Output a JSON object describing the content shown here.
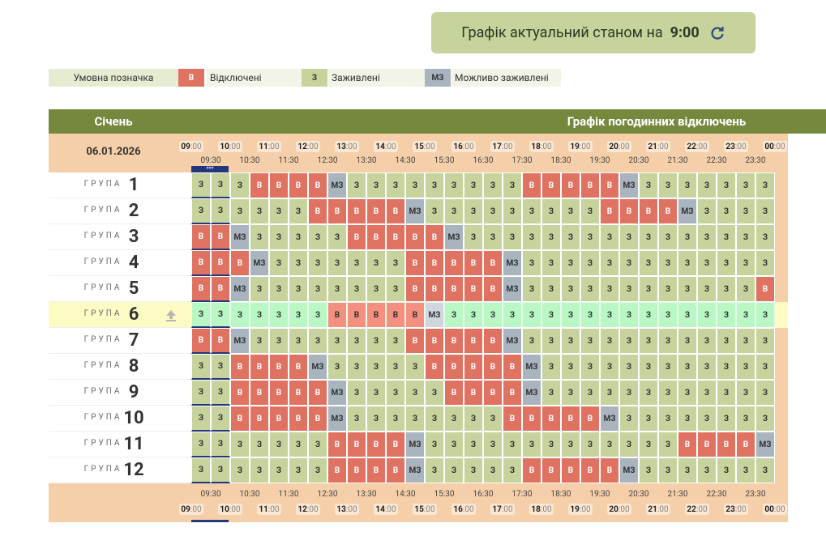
{
  "status": {
    "text": "Графік актуальний станом на",
    "time": "9:00"
  },
  "legend": {
    "title": "Умовна позначка",
    "items": [
      {
        "code": "В",
        "label": "Відключені",
        "color": "#e07262",
        "highlight_color": "#f4907f"
      },
      {
        "code": "З",
        "label": "Заживлені",
        "color": "#c6d39c",
        "highlight_color": "#b9f7c4"
      },
      {
        "code": "МЗ",
        "label": "Можливо заживлені",
        "color": "#a9b4bf",
        "highlight_color": "#d0d6de"
      }
    ]
  },
  "header": {
    "month": "Січень",
    "title": "Графік погодинних відключень",
    "date": "06.01.2026"
  },
  "current_marker": "***",
  "hours": [
    {
      "h": "09",
      "m": ":00"
    },
    {
      "h": "10",
      "m": ":00"
    },
    {
      "h": "11",
      "m": ":00"
    },
    {
      "h": "12",
      "m": ":00"
    },
    {
      "h": "13",
      "m": ":00"
    },
    {
      "h": "14",
      "m": ":00"
    },
    {
      "h": "15",
      "m": ":00"
    },
    {
      "h": "16",
      "m": ":00"
    },
    {
      "h": "17",
      "m": ":00"
    },
    {
      "h": "18",
      "m": ":00"
    },
    {
      "h": "19",
      "m": ":00"
    },
    {
      "h": "20",
      "m": ":00"
    },
    {
      "h": "21",
      "m": ":00"
    },
    {
      "h": "22",
      "m": ":00"
    },
    {
      "h": "23",
      "m": ":00"
    },
    {
      "h": "00",
      "m": ":00"
    }
  ],
  "half_hours": [
    "09:30",
    "10:30",
    "11:30",
    "12:30",
    "13:30",
    "14:30",
    "15:30",
    "16:30",
    "17:30",
    "18:30",
    "19:30",
    "20:30",
    "21:30",
    "22:30",
    "23:30"
  ],
  "group_word": "ГРУПА",
  "groups": [
    {
      "number": 1,
      "cells": [
        "З",
        "З",
        "З",
        "В",
        "В",
        "В",
        "В",
        "МЗ",
        "З",
        "З",
        "З",
        "З",
        "З",
        "З",
        "З",
        "З",
        "З",
        "В",
        "В",
        "В",
        "В",
        "В",
        "МЗ",
        "З",
        "З",
        "З",
        "З",
        "З",
        "З",
        "З"
      ]
    },
    {
      "number": 2,
      "cells": [
        "З",
        "З",
        "З",
        "З",
        "З",
        "З",
        "В",
        "В",
        "В",
        "В",
        "В",
        "МЗ",
        "З",
        "З",
        "З",
        "З",
        "З",
        "З",
        "З",
        "З",
        "З",
        "В",
        "В",
        "В",
        "В",
        "МЗ",
        "З",
        "З",
        "З",
        "З"
      ]
    },
    {
      "number": 3,
      "cells": [
        "В",
        "В",
        "МЗ",
        "З",
        "З",
        "З",
        "З",
        "З",
        "В",
        "В",
        "В",
        "В",
        "В",
        "МЗ",
        "З",
        "З",
        "З",
        "З",
        "З",
        "З",
        "З",
        "З",
        "З",
        "З",
        "З",
        "З",
        "З",
        "З",
        "З",
        "З"
      ]
    },
    {
      "number": 4,
      "cells": [
        "В",
        "В",
        "В",
        "МЗ",
        "З",
        "З",
        "З",
        "З",
        "З",
        "З",
        "З",
        "В",
        "В",
        "В",
        "В",
        "В",
        "МЗ",
        "З",
        "З",
        "З",
        "З",
        "З",
        "З",
        "З",
        "З",
        "З",
        "З",
        "З",
        "З",
        "З"
      ]
    },
    {
      "number": 5,
      "cells": [
        "В",
        "В",
        "МЗ",
        "З",
        "З",
        "З",
        "З",
        "З",
        "З",
        "З",
        "З",
        "В",
        "В",
        "В",
        "В",
        "В",
        "МЗ",
        "З",
        "З",
        "З",
        "З",
        "З",
        "З",
        "З",
        "З",
        "З",
        "З",
        "З",
        "З",
        "В"
      ]
    },
    {
      "number": 6,
      "highlighted": true,
      "cells": [
        "З",
        "З",
        "З",
        "З",
        "З",
        "З",
        "З",
        "В",
        "В",
        "В",
        "В",
        "В",
        "МЗ",
        "З",
        "З",
        "З",
        "З",
        "З",
        "З",
        "З",
        "З",
        "З",
        "З",
        "З",
        "З",
        "З",
        "З",
        "З",
        "З",
        "З"
      ]
    },
    {
      "number": 7,
      "cells": [
        "В",
        "В",
        "МЗ",
        "З",
        "З",
        "З",
        "З",
        "З",
        "З",
        "З",
        "З",
        "В",
        "В",
        "В",
        "В",
        "В",
        "МЗ",
        "З",
        "З",
        "З",
        "З",
        "З",
        "З",
        "З",
        "З",
        "З",
        "З",
        "З",
        "З",
        "З"
      ]
    },
    {
      "number": 8,
      "cells": [
        "З",
        "З",
        "В",
        "В",
        "В",
        "В",
        "МЗ",
        "З",
        "З",
        "З",
        "З",
        "З",
        "В",
        "В",
        "В",
        "В",
        "В",
        "МЗ",
        "З",
        "З",
        "З",
        "З",
        "З",
        "З",
        "З",
        "З",
        "З",
        "З",
        "З",
        "З"
      ]
    },
    {
      "number": 9,
      "cells": [
        "З",
        "З",
        "В",
        "В",
        "В",
        "В",
        "В",
        "МЗ",
        "З",
        "З",
        "З",
        "З",
        "З",
        "В",
        "В",
        "В",
        "В",
        "МЗ",
        "З",
        "З",
        "З",
        "З",
        "З",
        "З",
        "З",
        "З",
        "З",
        "З",
        "З",
        "З"
      ]
    },
    {
      "number": 10,
      "cells": [
        "З",
        "З",
        "В",
        "В",
        "В",
        "В",
        "В",
        "МЗ",
        "З",
        "З",
        "З",
        "З",
        "З",
        "З",
        "З",
        "З",
        "В",
        "В",
        "В",
        "В",
        "В",
        "МЗ",
        "З",
        "З",
        "З",
        "З",
        "З",
        "З",
        "З",
        "З"
      ]
    },
    {
      "number": 11,
      "cells": [
        "З",
        "З",
        "З",
        "З",
        "З",
        "З",
        "З",
        "В",
        "В",
        "В",
        "В",
        "МЗ",
        "З",
        "З",
        "З",
        "З",
        "З",
        "З",
        "З",
        "З",
        "З",
        "З",
        "З",
        "З",
        "З",
        "В",
        "В",
        "В",
        "В",
        "МЗ"
      ]
    },
    {
      "number": 12,
      "cells": [
        "З",
        "З",
        "З",
        "З",
        "З",
        "З",
        "З",
        "В",
        "В",
        "В",
        "В",
        "МЗ",
        "З",
        "З",
        "З",
        "З",
        "З",
        "В",
        "В",
        "В",
        "В",
        "В",
        "МЗ",
        "З",
        "З",
        "З",
        "З",
        "З",
        "З",
        "З"
      ]
    }
  ]
}
